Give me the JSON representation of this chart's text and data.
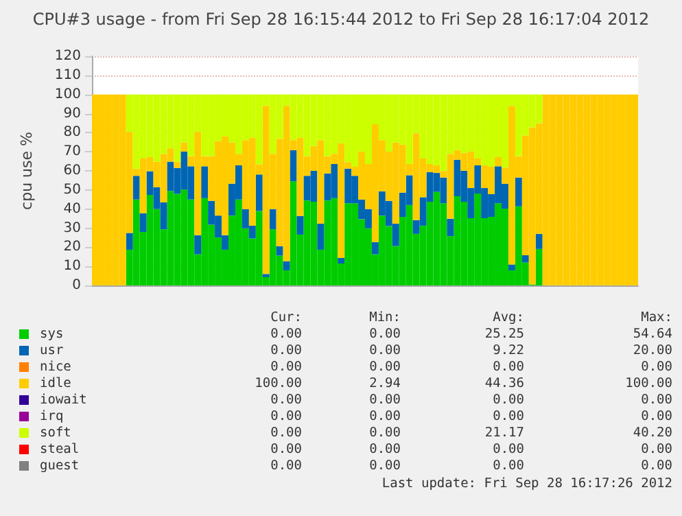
{
  "chart_data": {
    "type": "bar",
    "stacked": true,
    "title": "CPU#3 usage - from Fri Sep 28 16:15:44 2012 to Fri Sep 28 16:17:04 2012",
    "ylabel": "cpu use %",
    "categories": [
      null,
      null,
      null,
      null,
      null,
      null,
      null,
      null,
      null,
      null,
      null,
      null,
      null,
      null,
      null,
      null,
      null,
      null,
      null,
      null,
      null,
      null,
      null,
      null,
      null,
      null,
      null,
      null,
      null,
      null,
      null,
      null,
      null,
      null,
      null,
      null,
      null,
      null,
      null,
      null,
      null,
      null,
      null,
      null,
      null,
      null,
      null,
      null,
      null,
      null,
      null,
      null,
      null,
      null,
      null,
      null,
      null,
      null,
      null,
      null,
      null,
      null,
      null,
      null,
      null,
      null,
      null,
      null,
      null,
      null,
      null,
      null,
      null,
      null,
      null,
      null,
      null,
      null,
      null,
      null
    ],
    "ylim": [
      0,
      120
    ],
    "yticks": [
      0,
      10,
      20,
      30,
      40,
      50,
      60,
      70,
      80,
      90,
      100,
      110,
      120
    ],
    "grid": "y",
    "legend": "bottom",
    "series": [
      {
        "name": "sys",
        "color": "#00cc00",
        "values": [
          0,
          0,
          0,
          0,
          0,
          18.7,
          45,
          28,
          47.4,
          40,
          29.4,
          49.5,
          48,
          50.2,
          45,
          16.3,
          45.7,
          31.8,
          25.1,
          18.7,
          36.6,
          45,
          29.9,
          24.6,
          39,
          4.3,
          29.4,
          15.6,
          7.9,
          54.5,
          26.6,
          44.5,
          43.8,
          18.7,
          44.5,
          45.7,
          11.5,
          43,
          43,
          34.7,
          29.9,
          16.3,
          36.6,
          31.1,
          20.6,
          35.9,
          42.1,
          27,
          31.3,
          43.8,
          49,
          43,
          25.8,
          46.7,
          43.8,
          35.2,
          48.1,
          35.2,
          35.9,
          43,
          40.2,
          7.9,
          41.4,
          12,
          0.5,
          19.1,
          0,
          0,
          0,
          0,
          0,
          0,
          0,
          0,
          0,
          0,
          0,
          0,
          0,
          0
        ]
      },
      {
        "name": "usr",
        "color": "#0066b3",
        "values": [
          0,
          0,
          0,
          0,
          0,
          8.8,
          12.4,
          9.8,
          12.4,
          11.4,
          14.1,
          15.3,
          13.5,
          19.9,
          17.4,
          10,
          16.7,
          12.5,
          11.5,
          7.6,
          16.7,
          17.9,
          10.1,
          6.7,
          19.1,
          1.7,
          10.6,
          5,
          4.8,
          16.3,
          9.8,
          12.9,
          16.2,
          13.6,
          14.1,
          17.9,
          2.9,
          18.2,
          14.4,
          10.3,
          10.1,
          6.4,
          12.7,
          13.2,
          11.7,
          12.7,
          15.6,
          7.2,
          14.9,
          15.5,
          9.9,
          13.5,
          9.1,
          19.1,
          16.2,
          15.8,
          14.8,
          15.8,
          11.9,
          19.4,
          13.1,
          3.1,
          15.1,
          3.8,
          0,
          7.9,
          0,
          0,
          0,
          0,
          0,
          0,
          0,
          0,
          0,
          0,
          0,
          0,
          0,
          0
        ]
      },
      {
        "name": "nice",
        "color": "#ff8000",
        "values": [
          0,
          0,
          0,
          0,
          0,
          0,
          0,
          0,
          0,
          0,
          0,
          0,
          0,
          0,
          0,
          0,
          0,
          0,
          0,
          0,
          0,
          0,
          0,
          0,
          0,
          0,
          0,
          0,
          0,
          0,
          0,
          0,
          0,
          0,
          0,
          0,
          0,
          0,
          0,
          0,
          0,
          0,
          0,
          0,
          0,
          0,
          0,
          0,
          0,
          0,
          0,
          0,
          0,
          0,
          0,
          0,
          0,
          0,
          0,
          0,
          0,
          0,
          0,
          0,
          0,
          0,
          0,
          0,
          0,
          0,
          0,
          0,
          0,
          0,
          0,
          0,
          0,
          0,
          0,
          0
        ]
      },
      {
        "name": "idle",
        "color": "#ffcc00",
        "values": [
          100,
          100,
          100,
          100,
          100,
          52.9,
          3.6,
          28.7,
          7.4,
          13.4,
          25.4,
          7,
          3.3,
          4.8,
          5.3,
          54.1,
          5.3,
          23.4,
          39,
          51.7,
          21.6,
          6,
          36.1,
          46,
          5.3,
          88,
          28.9,
          56.2,
          81.3,
          5.3,
          40.9,
          10.3,
          13,
          43.8,
          9.1,
          5.3,
          60,
          3.4,
          4.8,
          25.1,
          23.6,
          61.7,
          26.8,
          25.8,
          42.6,
          25.1,
          5.9,
          45.5,
          20.3,
          4.3,
          4,
          3.3,
          34,
          5,
          9.4,
          19.1,
          3.6,
          11.9,
          14.4,
          4.8,
          8.4,
          83,
          11.2,
          62.7,
          82.3,
          57.9,
          100,
          100,
          100,
          100,
          100,
          100,
          100,
          100,
          100,
          100,
          100,
          100,
          100,
          100
        ]
      },
      {
        "name": "iowait",
        "color": "#330099",
        "values": [
          0,
          0,
          0,
          0,
          0,
          0,
          0,
          0,
          0,
          0,
          0,
          0,
          0,
          0,
          0,
          0,
          0,
          0,
          0,
          0,
          0,
          0,
          0,
          0,
          0,
          0,
          0,
          0,
          0,
          0,
          0,
          0,
          0,
          0,
          0,
          0,
          0,
          0,
          0,
          0,
          0,
          0,
          0,
          0,
          0,
          0,
          0,
          0,
          0,
          0,
          0,
          0,
          0,
          0,
          0,
          0,
          0,
          0,
          0,
          0,
          0,
          0,
          0,
          0,
          0,
          0,
          0,
          0,
          0,
          0,
          0,
          0,
          0,
          0,
          0,
          0,
          0,
          0,
          0,
          0
        ]
      },
      {
        "name": "irq",
        "color": "#990099",
        "values": [
          0,
          0,
          0,
          0,
          0,
          0,
          0,
          0,
          0,
          0,
          0,
          0,
          0,
          0,
          0,
          0,
          0,
          0,
          0,
          0,
          0,
          0,
          0,
          0,
          0,
          0,
          0,
          0,
          0,
          0,
          0,
          0,
          0,
          0,
          0,
          0,
          0,
          0,
          0,
          0,
          0,
          0,
          0,
          0,
          0,
          0,
          0,
          0,
          0,
          0,
          0,
          0,
          0,
          0,
          0,
          0,
          0,
          0,
          0,
          0,
          0,
          0,
          0,
          0,
          0,
          0,
          0,
          0,
          0,
          0,
          0,
          0,
          0,
          0,
          0,
          0,
          0,
          0,
          0,
          0
        ]
      },
      {
        "name": "soft",
        "color": "#ccff00",
        "values": [
          0,
          0,
          0,
          0,
          0,
          19.6,
          39,
          33.5,
          32.8,
          35.2,
          31.1,
          28.2,
          35.2,
          25.1,
          32.3,
          19.6,
          32.3,
          32.3,
          24.4,
          22,
          25.1,
          31.1,
          23.9,
          22.7,
          36.6,
          6,
          31.1,
          23.2,
          6,
          23.9,
          22.7,
          32.3,
          27,
          23.9,
          32.3,
          31.1,
          25.6,
          35.4,
          37.8,
          29.9,
          36.4,
          15.6,
          23.9,
          29.9,
          25.1,
          26.3,
          36.4,
          20.3,
          33.5,
          36.4,
          37.1,
          40.2,
          31.1,
          29.2,
          30.6,
          29.9,
          33.5,
          37.1,
          37.8,
          32.8,
          38.3,
          6,
          32.3,
          21.5,
          17.2,
          15.1,
          0,
          0,
          0,
          0,
          0,
          0,
          0,
          0,
          0,
          0,
          0,
          0,
          0,
          0
        ]
      },
      {
        "name": "steal",
        "color": "#ff0000",
        "values": [
          0,
          0,
          0,
          0,
          0,
          0,
          0,
          0,
          0,
          0,
          0,
          0,
          0,
          0,
          0,
          0,
          0,
          0,
          0,
          0,
          0,
          0,
          0,
          0,
          0,
          0,
          0,
          0,
          0,
          0,
          0,
          0,
          0,
          0,
          0,
          0,
          0,
          0,
          0,
          0,
          0,
          0,
          0,
          0,
          0,
          0,
          0,
          0,
          0,
          0,
          0,
          0,
          0,
          0,
          0,
          0,
          0,
          0,
          0,
          0,
          0,
          0,
          0,
          0,
          0,
          0,
          0,
          0,
          0,
          0,
          0,
          0,
          0,
          0,
          0,
          0,
          0,
          0,
          0,
          0
        ]
      },
      {
        "name": "guest",
        "color": "#808080",
        "values": [
          0,
          0,
          0,
          0,
          0,
          0,
          0,
          0,
          0,
          0,
          0,
          0,
          0,
          0,
          0,
          0,
          0,
          0,
          0,
          0,
          0,
          0,
          0,
          0,
          0,
          0,
          0,
          0,
          0,
          0,
          0,
          0,
          0,
          0,
          0,
          0,
          0,
          0,
          0,
          0,
          0,
          0,
          0,
          0,
          0,
          0,
          0,
          0,
          0,
          0,
          0,
          0,
          0,
          0,
          0,
          0,
          0,
          0,
          0,
          0,
          0,
          0,
          0,
          0,
          0,
          0,
          0,
          0,
          0,
          0,
          0,
          0,
          0,
          0,
          0,
          0,
          0,
          0,
          0,
          0
        ]
      }
    ],
    "annotations": [
      "Cur:",
      "Min:",
      "Avg:",
      "Max:",
      "0.00",
      "0.00",
      "25.25",
      "54.64",
      "0.00",
      "0.00",
      "9.22",
      "20.00",
      "0.00",
      "0.00",
      "0.00",
      "0.00",
      "100.00",
      "2.94",
      "44.36",
      "100.00",
      "0.00",
      "0.00",
      "0.00",
      "0.00",
      "0.00",
      "0.00",
      "0.00",
      "0.00",
      "0.00",
      "0.00",
      "21.17",
      "40.20",
      "0.00",
      "0.00",
      "0.00",
      "0.00",
      "0.00",
      "0.00",
      "0.00",
      "0.00",
      "Last update: Fri Sep 28 16:17:26 2012"
    ]
  }
}
